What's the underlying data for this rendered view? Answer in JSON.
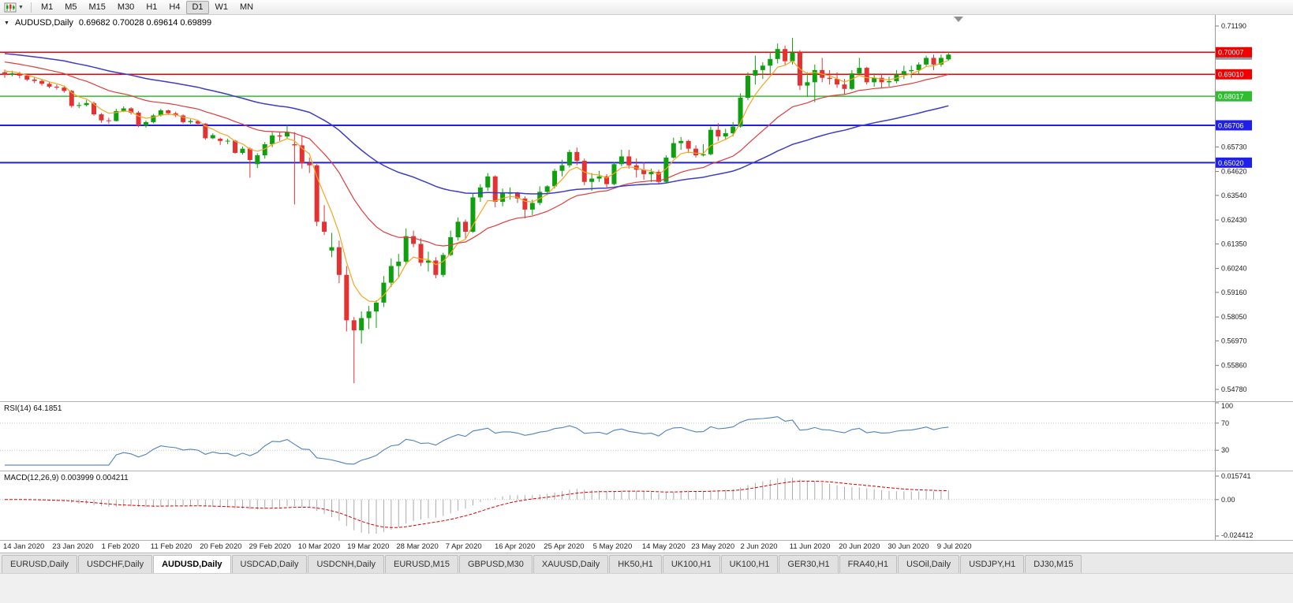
{
  "toolbar": {
    "timeframes": [
      "M1",
      "M5",
      "M15",
      "M30",
      "H1",
      "H4",
      "D1",
      "W1",
      "MN"
    ],
    "active_timeframe": "D1"
  },
  "header": {
    "title": "AUDUSD,Daily",
    "ohlc": "0.69682 0.70028 0.69614 0.69899"
  },
  "rsi": {
    "label": "RSI(14) 64.1851",
    "value": 64.1851,
    "period": 14,
    "levels": [
      70,
      30
    ],
    "axis": [
      {
        "value": 100,
        "label": "100"
      },
      {
        "value": 70,
        "label": "70"
      },
      {
        "value": 30,
        "label": "30"
      }
    ]
  },
  "macd": {
    "label": "MACD(12,26,9) 0.003999 0.004211",
    "macd_value": 0.003999,
    "signal_value": 0.004211,
    "axis": [
      {
        "value": 0.015741,
        "label": "0.015741"
      },
      {
        "value": 0,
        "label": "0.00"
      },
      {
        "value": -0.024412,
        "label": "-0.024412"
      }
    ]
  },
  "tabs": {
    "active_index": 2,
    "items": [
      "EURUSD,Daily",
      "USDCHF,Daily",
      "AUDUSD,Daily",
      "USDCAD,Daily",
      "USDCNH,Daily",
      "EURUSD,M15",
      "GBPUSD,M30",
      "XAUUSD,Daily",
      "HK50,H1",
      "UK100,H1",
      "UK100,H1",
      "GER30,H1",
      "FRA40,H1",
      "USOil,Daily",
      "USDJPY,H1",
      "DJ30,M15"
    ],
    "active_label": "AUDUSD,Daily"
  },
  "colors": {
    "up": "#0fa00f",
    "down": "#e23232",
    "ma_fast": "#f5a623",
    "ma_medium": "#e03c3c",
    "ma_slow": "#3c3cc8",
    "rsi_line": "#4f81bd",
    "macd_hist": "#ababab",
    "macd_signal": "#dd0000",
    "axis_text": "#1a1a1a"
  },
  "chart_data": {
    "type": "candlestick",
    "symbol": "AUDUSD",
    "timeframe": "Daily",
    "title": "AUDUSD,Daily 0.69682 0.70028 0.69614 0.69899",
    "current_ohlc": {
      "open": 0.69682,
      "high": 0.70028,
      "low": 0.69614,
      "close": 0.69899
    },
    "ylim": [
      0.5442,
      0.7137
    ],
    "grid": false,
    "price_axis_ticks": [
      0.7119,
      0.7008,
      0.69,
      0.6792,
      0.6681,
      0.6573,
      0.6462,
      0.6354,
      0.6243,
      0.6135,
      0.6024,
      0.5916,
      0.5805,
      0.5697,
      0.5586,
      0.5478
    ],
    "x_labels": [
      "14 Jan 2020",
      "23 Jan 2020",
      "1 Feb 2020",
      "11 Feb 2020",
      "20 Feb 2020",
      "29 Feb 2020",
      "10 Mar 2020",
      "19 Mar 2020",
      "28 Mar 2020",
      "7 Apr 2020",
      "16 Apr 2020",
      "25 Apr 2020",
      "5 May 2020",
      "14 May 2020",
      "23 May 2020",
      "2 Jun 2020",
      "11 Jun 2020",
      "20 Jun 2020",
      "30 Jun 2020",
      "9 Jul 2020"
    ],
    "hlines": [
      {
        "value": 0.70007,
        "label": "0.70007",
        "color": "#f20000",
        "width": 1.5
      },
      {
        "value": 0.6901,
        "label": "0.69010",
        "color": "#f20000",
        "width": 1.5
      },
      {
        "value": 0.68017,
        "label": "0.68017",
        "color": "#30bd30",
        "width": 1.5
      },
      {
        "value": 0.66706,
        "label": "0.66706",
        "color": "#1f1fe8",
        "width": 2
      },
      {
        "value": 0.6502,
        "label": "0.65020",
        "color": "#1f1fe8",
        "width": 2
      }
    ],
    "current_price": {
      "value": 0.69899,
      "label": "0.69899",
      "color": "#8e99a4"
    },
    "candles": [
      [
        0.691,
        0.6922,
        0.6885,
        0.6898
      ],
      [
        0.6898,
        0.6917,
        0.6892,
        0.6905
      ],
      [
        0.6905,
        0.6912,
        0.6883,
        0.6895
      ],
      [
        0.6895,
        0.69,
        0.687,
        0.6877
      ],
      [
        0.6877,
        0.6886,
        0.6861,
        0.6871
      ],
      [
        0.6871,
        0.6878,
        0.685,
        0.6858
      ],
      [
        0.6858,
        0.6865,
        0.6838,
        0.6845
      ],
      [
        0.6845,
        0.6855,
        0.6832,
        0.6841
      ],
      [
        0.6841,
        0.685,
        0.6818,
        0.6826
      ],
      [
        0.6826,
        0.683,
        0.675,
        0.6758
      ],
      [
        0.6758,
        0.6774,
        0.6748,
        0.6762
      ],
      [
        0.6762,
        0.6785,
        0.6756,
        0.6771
      ],
      [
        0.6771,
        0.6778,
        0.6714,
        0.672
      ],
      [
        0.672,
        0.6726,
        0.6682,
        0.6693
      ],
      [
        0.6693,
        0.6705,
        0.6678,
        0.669
      ],
      [
        0.669,
        0.6745,
        0.6688,
        0.6735
      ],
      [
        0.6735,
        0.6756,
        0.673,
        0.6747
      ],
      [
        0.6747,
        0.6752,
        0.672,
        0.6728
      ],
      [
        0.6728,
        0.6735,
        0.6662,
        0.667
      ],
      [
        0.667,
        0.6692,
        0.666,
        0.6685
      ],
      [
        0.6685,
        0.6722,
        0.668,
        0.6715
      ],
      [
        0.6715,
        0.6745,
        0.671,
        0.6738
      ],
      [
        0.6738,
        0.6742,
        0.6718,
        0.6725
      ],
      [
        0.6725,
        0.6732,
        0.6708,
        0.6715
      ],
      [
        0.6715,
        0.672,
        0.6678,
        0.6685
      ],
      [
        0.6685,
        0.6698,
        0.6677,
        0.669
      ],
      [
        0.669,
        0.6695,
        0.667,
        0.6678
      ],
      [
        0.6678,
        0.668,
        0.6605,
        0.6612
      ],
      [
        0.6612,
        0.6634,
        0.6608,
        0.6626
      ],
      [
        0.661,
        0.6615,
        0.6582,
        0.66
      ],
      [
        0.66,
        0.661,
        0.6585,
        0.6601
      ],
      [
        0.6601,
        0.6605,
        0.6542,
        0.6546
      ],
      [
        0.6546,
        0.6575,
        0.6538,
        0.6565
      ],
      [
        0.6565,
        0.657,
        0.6434,
        0.6514
      ],
      [
        0.6495,
        0.6545,
        0.6478,
        0.6535
      ],
      [
        0.6535,
        0.6595,
        0.652,
        0.6585
      ],
      [
        0.6585,
        0.664,
        0.6572,
        0.6625
      ],
      [
        0.6625,
        0.6638,
        0.66,
        0.662
      ],
      [
        0.662,
        0.667,
        0.661,
        0.664
      ],
      [
        0.6585,
        0.664,
        0.6313,
        0.658
      ],
      [
        0.658,
        0.662,
        0.6475,
        0.65
      ],
      [
        0.65,
        0.6525,
        0.6455,
        0.649
      ],
      [
        0.649,
        0.6495,
        0.6215,
        0.6235
      ],
      [
        0.6235,
        0.631,
        0.6175,
        0.619
      ],
      [
        0.6105,
        0.6185,
        0.6075,
        0.612
      ],
      [
        0.612,
        0.615,
        0.5958,
        0.5995
      ],
      [
        0.5995,
        0.6035,
        0.574,
        0.579
      ],
      [
        0.579,
        0.5805,
        0.5506,
        0.5745
      ],
      [
        0.5745,
        0.583,
        0.5685,
        0.58
      ],
      [
        0.58,
        0.5855,
        0.575,
        0.583
      ],
      [
        0.583,
        0.588,
        0.5755,
        0.587
      ],
      [
        0.587,
        0.599,
        0.585,
        0.596
      ],
      [
        0.596,
        0.607,
        0.594,
        0.6035
      ],
      [
        0.6035,
        0.609,
        0.5985,
        0.6055
      ],
      [
        0.6055,
        0.6205,
        0.604,
        0.617
      ],
      [
        0.617,
        0.6195,
        0.612,
        0.6135
      ],
      [
        0.6135,
        0.616,
        0.6035,
        0.605
      ],
      [
        0.605,
        0.61,
        0.601,
        0.606
      ],
      [
        0.606,
        0.6075,
        0.598,
        0.5995
      ],
      [
        0.5995,
        0.6095,
        0.5985,
        0.6085
      ],
      [
        0.6085,
        0.6195,
        0.608,
        0.6165
      ],
      [
        0.6165,
        0.6255,
        0.615,
        0.6235
      ],
      [
        0.6235,
        0.6245,
        0.616,
        0.619
      ],
      [
        0.619,
        0.6365,
        0.6185,
        0.6345
      ],
      [
        0.6345,
        0.6405,
        0.6325,
        0.639
      ],
      [
        0.639,
        0.6455,
        0.6375,
        0.644
      ],
      [
        0.644,
        0.6445,
        0.63,
        0.6325
      ],
      [
        0.6325,
        0.6385,
        0.6305,
        0.6365
      ],
      [
        0.6365,
        0.639,
        0.6335,
        0.6365
      ],
      [
        0.6365,
        0.637,
        0.632,
        0.634
      ],
      [
        0.634,
        0.635,
        0.625,
        0.629
      ],
      [
        0.629,
        0.6335,
        0.6265,
        0.632
      ],
      [
        0.632,
        0.6395,
        0.631,
        0.637
      ],
      [
        0.637,
        0.64,
        0.6355,
        0.6395
      ],
      [
        0.6395,
        0.6475,
        0.6385,
        0.6465
      ],
      [
        0.6465,
        0.6515,
        0.644,
        0.649
      ],
      [
        0.649,
        0.656,
        0.648,
        0.655
      ],
      [
        0.655,
        0.657,
        0.649,
        0.651
      ],
      [
        0.651,
        0.652,
        0.64,
        0.6415
      ],
      [
        0.6415,
        0.6455,
        0.6375,
        0.643
      ],
      [
        0.643,
        0.6465,
        0.6415,
        0.644
      ],
      [
        0.644,
        0.645,
        0.639,
        0.6405
      ],
      [
        0.6405,
        0.6505,
        0.64,
        0.6495
      ],
      [
        0.6495,
        0.656,
        0.6485,
        0.653
      ],
      [
        0.653,
        0.656,
        0.6475,
        0.649
      ],
      [
        0.649,
        0.652,
        0.6435,
        0.647
      ],
      [
        0.647,
        0.6505,
        0.6425,
        0.645
      ],
      [
        0.645,
        0.6475,
        0.6415,
        0.646
      ],
      [
        0.646,
        0.647,
        0.6405,
        0.6415
      ],
      [
        0.6415,
        0.6535,
        0.641,
        0.6525
      ],
      [
        0.6525,
        0.6615,
        0.652,
        0.659
      ],
      [
        0.659,
        0.6618,
        0.656,
        0.66
      ],
      [
        0.66,
        0.6605,
        0.6545,
        0.6565
      ],
      [
        0.6565,
        0.658,
        0.6525,
        0.6535
      ],
      [
        0.6535,
        0.6585,
        0.653,
        0.654
      ],
      [
        0.654,
        0.6665,
        0.6535,
        0.665
      ],
      [
        0.665,
        0.668,
        0.66,
        0.662
      ],
      [
        0.662,
        0.6655,
        0.6605,
        0.6635
      ],
      [
        0.6635,
        0.6685,
        0.662,
        0.6665
      ],
      [
        0.6665,
        0.6815,
        0.666,
        0.6795
      ],
      [
        0.6795,
        0.691,
        0.6785,
        0.6895
      ],
      [
        0.6895,
        0.6985,
        0.6855,
        0.692
      ],
      [
        0.692,
        0.6955,
        0.688,
        0.694
      ],
      [
        0.694,
        0.7,
        0.6905,
        0.697
      ],
      [
        0.697,
        0.704,
        0.695,
        0.7015
      ],
      [
        0.7015,
        0.703,
        0.694,
        0.696
      ],
      [
        0.696,
        0.7065,
        0.6945,
        0.7
      ],
      [
        0.7,
        0.701,
        0.683,
        0.685
      ],
      [
        0.685,
        0.691,
        0.68,
        0.6865
      ],
      [
        0.6865,
        0.6945,
        0.6775,
        0.692
      ],
      [
        0.692,
        0.6975,
        0.6865,
        0.6885
      ],
      [
        0.6885,
        0.692,
        0.6855,
        0.688
      ],
      [
        0.688,
        0.691,
        0.684,
        0.6855
      ],
      [
        0.6855,
        0.688,
        0.681,
        0.6835
      ],
      [
        0.6835,
        0.692,
        0.683,
        0.6905
      ],
      [
        0.6905,
        0.6975,
        0.6895,
        0.693
      ],
      [
        0.693,
        0.6935,
        0.6855,
        0.6865
      ],
      [
        0.6865,
        0.6905,
        0.6845,
        0.6885
      ],
      [
        0.6885,
        0.69,
        0.684,
        0.6865
      ],
      [
        0.6865,
        0.689,
        0.6845,
        0.687
      ],
      [
        0.687,
        0.692,
        0.686,
        0.69
      ],
      [
        0.69,
        0.694,
        0.688,
        0.6915
      ],
      [
        0.6915,
        0.694,
        0.6885,
        0.692
      ],
      [
        0.692,
        0.6955,
        0.69,
        0.6945
      ],
      [
        0.6945,
        0.6985,
        0.6935,
        0.6975
      ],
      [
        0.6975,
        0.699,
        0.692,
        0.6945
      ],
      [
        0.6945,
        0.699,
        0.6935,
        0.6975
      ],
      [
        0.69682,
        0.70028,
        0.69614,
        0.69899
      ]
    ]
  }
}
